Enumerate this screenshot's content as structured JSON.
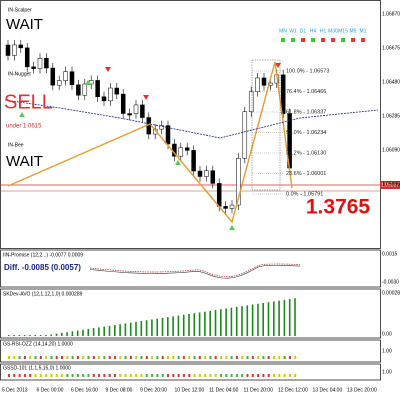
{
  "signals": [
    {
      "name": "IN-Scalper",
      "status": "WAIT"
    },
    {
      "name": "IN-Nugget",
      "status": "SELL",
      "note": "under 1.0615"
    },
    {
      "name": "IN-Bee",
      "status": "WAIT"
    }
  ],
  "timeframes": [
    "MN",
    "W1",
    "D1",
    "H4",
    "H1",
    "M30",
    "M15",
    "M5",
    "M1"
  ],
  "fib_levels": [
    "100.0% - 1.06573",
    "76.4% - 1.06466",
    "61.8% - 1.06337",
    "50.0% - 1.06234",
    "38.2% - 1.06130",
    "23.6% - 1.06001",
    "0.0% - 1.05791"
  ],
  "price": "1.3765",
  "price_axis": [
    "1.06870",
    "1.06675",
    "1.06480",
    "1.06285",
    "1.06090",
    "1.05895"
  ],
  "current_price": "1.05837",
  "panels": [
    {
      "title": "IIN-Promise (12,2...)  -0.0077 0.0009",
      "axis": [
        "0.0015",
        "-0.0030"
      ]
    },
    {
      "title": "SKDev-AVO (12,1,12,1,0) 0.000289",
      "axis": [
        "0.000289",
        "0.00"
      ]
    },
    {
      "title": "GS-RSI-OZZ (14,14,20) 1.0000",
      "axis": [
        "1.00"
      ]
    },
    {
      "title": "GSSD-101 (1,1,5,15,0) 1.0000",
      "axis": [
        "1.00"
      ]
    }
  ],
  "diff": "Diff. -0.0085 (0.0057)",
  "time_axis": [
    "5 Dec 2013",
    "6 Dec 00:00",
    "6 Dec 16:00",
    "9 Dec 08:00",
    "9 Dec 20:00",
    "10 Dec 12:00",
    "11 Dec 04:00",
    "11 Dec 20:00",
    "12 Dec 12:00",
    "13 Dec 04:00",
    "13 Dec 20:00"
  ]
}
